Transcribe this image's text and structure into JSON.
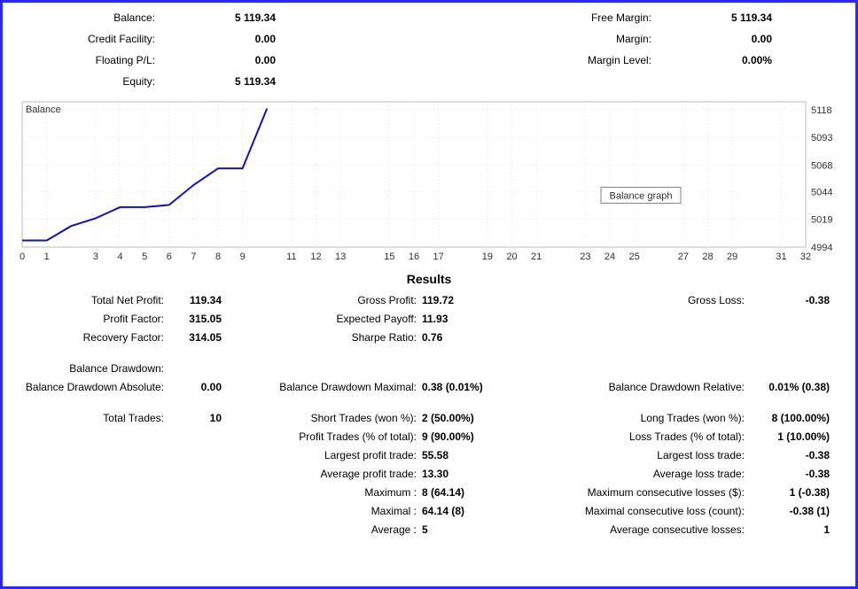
{
  "top_stats": {
    "left": [
      {
        "label": "Balance:",
        "value": "5 119.34"
      },
      {
        "label": "Credit Facility:",
        "value": "0.00"
      },
      {
        "label": "Floating P/L:",
        "value": "0.00"
      },
      {
        "label": "Equity:",
        "value": "5 119.34"
      }
    ],
    "right": [
      {
        "label": "Free Margin:",
        "value": "5 119.34"
      },
      {
        "label": "Margin:",
        "value": "0.00"
      },
      {
        "label": "Margin Level:",
        "value": "0.00%"
      }
    ]
  },
  "chart": {
    "series_label": "Balance",
    "tooltip_label": "Balance graph",
    "line_color": "#1313b3",
    "line_width": 2,
    "grid_color": "#e4e4e4",
    "border_color": "#bdbdbd",
    "text_color": "#303030",
    "background": "#ffffff",
    "x_ticks": [
      0,
      1,
      3,
      4,
      5,
      6,
      7,
      8,
      9,
      11,
      12,
      13,
      15,
      16,
      17,
      19,
      20,
      21,
      23,
      24,
      25,
      27,
      28,
      29,
      31,
      32
    ],
    "y_ticks": [
      4994,
      5019,
      5044,
      5068,
      5093,
      5118
    ],
    "x_min": 0,
    "x_max": 32,
    "y_min": 4994,
    "y_max": 5125,
    "points": [
      {
        "x": 0,
        "y": 5000
      },
      {
        "x": 1,
        "y": 5000
      },
      {
        "x": 2,
        "y": 5013
      },
      {
        "x": 3,
        "y": 5020
      },
      {
        "x": 4,
        "y": 5030
      },
      {
        "x": 5,
        "y": 5030
      },
      {
        "x": 6,
        "y": 5032
      },
      {
        "x": 7,
        "y": 5050
      },
      {
        "x": 8,
        "y": 5065
      },
      {
        "x": 9,
        "y": 5065
      },
      {
        "x": 10,
        "y": 5119
      }
    ]
  },
  "results_title": "Results",
  "results": [
    {
      "l": "Total Net Profit:",
      "lv": "119.34",
      "m": "Gross Profit:",
      "mv": "119.72",
      "r": "Gross Loss:",
      "rv": "-0.38"
    },
    {
      "l": "Profit Factor:",
      "lv": "315.05",
      "m": "Expected Payoff:",
      "mv": "11.93",
      "r": "",
      "rv": ""
    },
    {
      "l": "Recovery Factor:",
      "lv": "314.05",
      "m": "Sharpe Ratio:",
      "mv": "0.76",
      "r": "",
      "rv": ""
    },
    {
      "spacer": true
    },
    {
      "l": "Balance Drawdown:",
      "lv": "",
      "m": "",
      "mv": "",
      "r": "",
      "rv": ""
    },
    {
      "l": "Balance Drawdown Absolute:",
      "lv": "0.00",
      "m": "Balance Drawdown Maximal:",
      "mv": "0.38 (0.01%)",
      "r": "Balance Drawdown Relative:",
      "rv": "0.01% (0.38)"
    },
    {
      "spacer": true
    },
    {
      "l": "Total Trades:",
      "lv": "10",
      "m": "Short Trades (won %):",
      "mv": "2 (50.00%)",
      "r": "Long Trades (won %):",
      "rv": "8 (100.00%)"
    },
    {
      "l": "",
      "lv": "",
      "m": "Profit Trades (% of total):",
      "mv": "9 (90.00%)",
      "r": "Loss Trades (% of total):",
      "rv": "1 (10.00%)"
    },
    {
      "l": "",
      "lv": "",
      "m": "Largest profit trade:",
      "mv": "55.58",
      "r": "Largest loss trade:",
      "rv": "-0.38"
    },
    {
      "l": "",
      "lv": "",
      "m": "Average profit trade:",
      "mv": "13.30",
      "r": "Average loss trade:",
      "rv": "-0.38"
    },
    {
      "l": "",
      "lv": "",
      "m": "Maximum :",
      "mv": "8 (64.14)",
      "r": "Maximum consecutive losses ($):",
      "rv": "1 (-0.38)"
    },
    {
      "l": "",
      "lv": "",
      "m": "Maximal :",
      "mv": "64.14 (8)",
      "r": "Maximal consecutive loss (count):",
      "rv": "-0.38 (1)"
    },
    {
      "l": "",
      "lv": "",
      "m": "Average :",
      "mv": "5",
      "r": "Average consecutive losses:",
      "rv": "1"
    }
  ]
}
